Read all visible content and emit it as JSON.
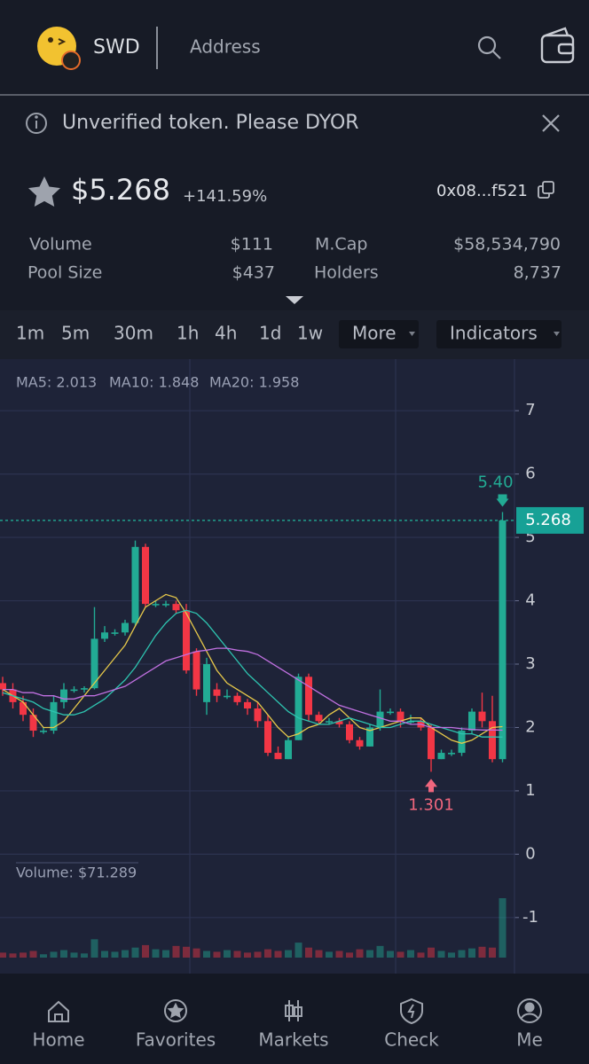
{
  "header": {
    "token": "SWD",
    "address_tab": "Address"
  },
  "banner": {
    "text": "Unverified token. Please DYOR"
  },
  "price": {
    "value": "$5.268",
    "change": "+141.59%",
    "contract": "0x08...f521"
  },
  "stats": [
    {
      "label": "Volume",
      "value": "$111"
    },
    {
      "label": "M.Cap",
      "value": "$58,534,790"
    },
    {
      "label": "Pool Size",
      "value": "$437"
    },
    {
      "label": "Holders",
      "value": "8,737"
    }
  ],
  "timeframes": [
    "1m",
    "5m",
    "30m",
    "1h",
    "4h",
    "1d",
    "1w"
  ],
  "menus": [
    "More",
    "Indicators"
  ],
  "chart_data": {
    "type": "candlestick",
    "open": [
      2.7,
      2.6,
      2.4,
      2.2,
      1.95,
      1.95,
      2.4,
      2.6,
      2.6,
      2.62,
      3.4,
      3.5,
      3.5,
      3.65,
      4.85,
      3.95,
      3.95,
      3.95,
      3.85,
      3.2,
      2.4,
      2.6,
      2.5,
      2.5,
      2.4,
      2.3,
      2.1,
      1.6,
      1.5,
      1.8,
      2.8,
      2.2,
      2.1,
      2.1,
      2.05,
      1.8,
      1.7,
      2.0,
      2.25,
      2.25,
      2.1,
      2.1,
      2.0,
      1.5,
      1.6,
      1.6,
      1.95,
      2.25,
      2.1,
      1.5
    ],
    "high": [
      2.8,
      2.7,
      2.5,
      2.3,
      2.0,
      2.5,
      2.7,
      2.65,
      2.65,
      3.9,
      3.6,
      3.55,
      3.7,
      4.95,
      4.9,
      4.0,
      4.0,
      4.0,
      3.95,
      3.25,
      3.1,
      2.7,
      2.6,
      2.55,
      2.45,
      2.4,
      2.2,
      1.7,
      1.85,
      2.85,
      2.85,
      2.25,
      2.15,
      2.15,
      2.1,
      1.85,
      2.05,
      2.6,
      2.3,
      2.3,
      2.2,
      2.15,
      2.05,
      1.65,
      1.65,
      2.0,
      2.3,
      2.55,
      2.5,
      5.4
    ],
    "low": [
      2.5,
      2.3,
      2.1,
      1.85,
      1.9,
      1.9,
      2.3,
      2.55,
      2.55,
      2.6,
      3.35,
      3.45,
      3.45,
      3.6,
      3.9,
      3.9,
      3.9,
      3.8,
      2.85,
      2.5,
      2.2,
      2.4,
      2.45,
      2.35,
      2.2,
      2.0,
      1.55,
      1.5,
      1.5,
      1.8,
      2.1,
      2.05,
      2.05,
      2.0,
      1.75,
      1.65,
      1.7,
      1.95,
      2.2,
      2.0,
      2.05,
      1.95,
      1.301,
      1.5,
      1.55,
      1.55,
      1.9,
      2.0,
      1.45,
      1.45
    ],
    "close": [
      2.6,
      2.4,
      2.2,
      1.95,
      1.95,
      2.4,
      2.6,
      2.6,
      2.62,
      3.4,
      3.5,
      3.5,
      3.65,
      4.85,
      3.95,
      3.95,
      3.95,
      3.85,
      2.9,
      2.6,
      3.0,
      2.5,
      2.5,
      2.4,
      2.3,
      2.1,
      1.6,
      1.5,
      1.8,
      2.8,
      2.2,
      2.1,
      2.1,
      2.05,
      1.8,
      1.7,
      2.0,
      2.25,
      2.25,
      2.1,
      2.1,
      2.0,
      1.5,
      1.6,
      1.6,
      1.95,
      2.25,
      2.1,
      1.5,
      5.268
    ],
    "volumes": [
      6,
      5,
      6,
      8,
      4,
      7,
      9,
      6,
      5,
      22,
      8,
      7,
      9,
      12,
      15,
      10,
      9,
      14,
      13,
      11,
      8,
      7,
      9,
      8,
      6,
      7,
      10,
      8,
      9,
      18,
      12,
      9,
      7,
      8,
      6,
      10,
      9,
      14,
      8,
      7,
      9,
      6,
      12,
      8,
      6,
      9,
      11,
      13,
      12,
      71.289
    ],
    "volume_label": "Volume: $71.289",
    "up_color": "#22ab94",
    "down_color": "#f23645",
    "series": [
      {
        "name": "MA5: 2.013",
        "color": "#e6c84a",
        "values": [
          2.6,
          2.5,
          2.4,
          2.2,
          2.0,
          2.0,
          2.1,
          2.3,
          2.5,
          2.7,
          2.9,
          3.1,
          3.3,
          3.6,
          3.9,
          4.0,
          4.1,
          4.05,
          3.8,
          3.5,
          3.2,
          2.9,
          2.7,
          2.6,
          2.5,
          2.4,
          2.2,
          2.0,
          1.85,
          1.9,
          2.0,
          2.05,
          2.2,
          2.3,
          2.15,
          2.0,
          1.95,
          2.0,
          2.05,
          2.1,
          2.15,
          2.15,
          2.0,
          1.9,
          1.8,
          1.75,
          1.8,
          1.9,
          2.0,
          2.013
        ]
      },
      {
        "name": "MA10: 1.848",
        "color": "#2ec4b0",
        "values": [
          2.55,
          2.5,
          2.45,
          2.4,
          2.3,
          2.25,
          2.2,
          2.2,
          2.25,
          2.35,
          2.45,
          2.6,
          2.75,
          2.95,
          3.2,
          3.45,
          3.65,
          3.8,
          3.85,
          3.8,
          3.65,
          3.45,
          3.25,
          3.05,
          2.85,
          2.7,
          2.55,
          2.4,
          2.25,
          2.15,
          2.1,
          2.05,
          2.05,
          2.1,
          2.15,
          2.1,
          2.05,
          2.0,
          2.0,
          2.05,
          2.1,
          2.1,
          2.05,
          2.0,
          1.95,
          1.9,
          1.9,
          1.85,
          1.85,
          1.848
        ]
      },
      {
        "name": "MA20: 1.958",
        "color": "#c070e0",
        "values": [
          2.6,
          2.6,
          2.55,
          2.55,
          2.5,
          2.5,
          2.45,
          2.45,
          2.5,
          2.5,
          2.55,
          2.6,
          2.65,
          2.75,
          2.85,
          2.95,
          3.05,
          3.1,
          3.15,
          3.2,
          3.22,
          3.25,
          3.25,
          3.22,
          3.2,
          3.15,
          3.05,
          2.95,
          2.85,
          2.75,
          2.65,
          2.55,
          2.45,
          2.35,
          2.3,
          2.25,
          2.2,
          2.15,
          2.1,
          2.1,
          2.05,
          2.05,
          2.0,
          2.0,
          2.0,
          1.98,
          1.97,
          1.96,
          1.96,
          1.958
        ]
      }
    ],
    "last_price": 5.268,
    "high_marker": {
      "value": 5.4,
      "label": "5.40"
    },
    "low_marker": 1.301,
    "ylim": [
      -1.8,
      7.8
    ],
    "yticks": [
      7,
      6,
      5,
      4,
      3,
      2,
      1,
      0,
      -1
    ],
    "grid": true
  },
  "nav": [
    "Home",
    "Favorites",
    "Markets",
    "Check",
    "Me"
  ]
}
